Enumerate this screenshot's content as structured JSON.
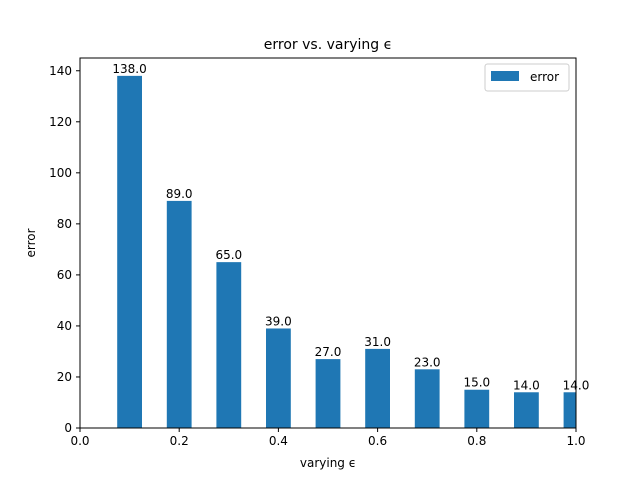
{
  "chart_data": {
    "type": "bar",
    "title": "error vs. varying ϵ",
    "xlabel": "varying ϵ",
    "ylabel": "error",
    "x": [
      0.1,
      0.2,
      0.3,
      0.4,
      0.5,
      0.6,
      0.7,
      0.8,
      0.9,
      1.0
    ],
    "series": [
      {
        "name": "error",
        "values": [
          138.0,
          89.0,
          65.0,
          39.0,
          27.0,
          31.0,
          23.0,
          15.0,
          14.0,
          14.0
        ],
        "labels": [
          "138.0",
          "89.0",
          "65.0",
          "39.0",
          "27.0",
          "31.0",
          "23.0",
          "15.0",
          "14.0",
          "14.0"
        ],
        "color": "#1f77b4"
      }
    ],
    "bar_width": 0.05,
    "xlim": [
      0.0,
      1.0
    ],
    "ylim": [
      0,
      145
    ],
    "xticks": [
      0.0,
      0.2,
      0.4,
      0.6,
      0.8,
      1.0
    ],
    "xtick_labels": [
      "0.0",
      "0.2",
      "0.4",
      "0.6",
      "0.8",
      "1.0"
    ],
    "yticks": [
      0,
      20,
      40,
      60,
      80,
      100,
      120,
      140
    ],
    "ytick_labels": [
      "0",
      "20",
      "40",
      "60",
      "80",
      "100",
      "120",
      "140"
    ],
    "grid": false,
    "legend": {
      "position": "top-right",
      "entries": [
        "error"
      ]
    }
  }
}
